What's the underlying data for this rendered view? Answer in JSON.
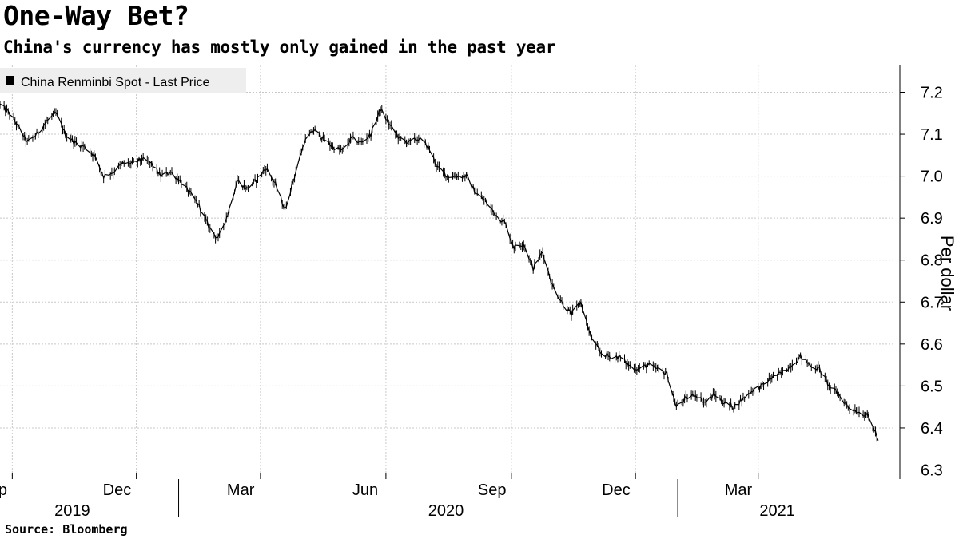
{
  "title": "One-Way Bet?",
  "subtitle": "China's currency has mostly only gained in the past year",
  "source": "Source: Bloomberg",
  "chart_data": {
    "type": "line",
    "style": "high-low-close",
    "title": "One-Way Bet?",
    "subtitle": "China's currency has mostly only gained in the past year",
    "legend": {
      "position": "top-left",
      "entries": [
        "China Renminbi Spot - Last Price"
      ]
    },
    "ylabel": "Per dollar",
    "y_axis_side": "right",
    "ylim": [
      6.3,
      7.25
    ],
    "yticks": [
      "6.3",
      "6.4",
      "6.5",
      "6.6",
      "6.7",
      "6.8",
      "6.9",
      "7.0",
      "7.1",
      "7.2"
    ],
    "grid": true,
    "xlim": [
      "2019-08-23",
      "2021-05-31"
    ],
    "month_ticks": [
      {
        "date": "2019-09-01",
        "label": "Sep"
      },
      {
        "date": "2019-12-01",
        "label": "Dec"
      },
      {
        "date": "2020-03-01",
        "label": "Mar"
      },
      {
        "date": "2020-06-01",
        "label": "Jun"
      },
      {
        "date": "2020-09-01",
        "label": "Sep"
      },
      {
        "date": "2020-12-01",
        "label": "Dec"
      },
      {
        "date": "2021-03-01",
        "label": "Mar"
      }
    ],
    "year_labels": [
      {
        "date": "2019-10-15",
        "label": "2019"
      },
      {
        "date": "2020-07-15",
        "label": "2020"
      },
      {
        "date": "2021-03-15",
        "label": "2021"
      }
    ],
    "year_separators": [
      "2020-01-01",
      "2021-01-01"
    ],
    "series": [
      {
        "name": "China Renminbi Spot - Last Price",
        "color": "#000000",
        "points": [
          [
            "2019-08-23",
            7.17
          ],
          [
            "2019-08-30",
            7.15
          ],
          [
            "2019-09-05",
            7.12
          ],
          [
            "2019-09-12",
            7.08
          ],
          [
            "2019-09-19",
            7.1
          ],
          [
            "2019-09-26",
            7.13
          ],
          [
            "2019-10-03",
            7.15
          ],
          [
            "2019-10-10",
            7.1
          ],
          [
            "2019-10-17",
            7.08
          ],
          [
            "2019-10-24",
            7.07
          ],
          [
            "2019-10-31",
            7.05
          ],
          [
            "2019-11-07",
            7.0
          ],
          [
            "2019-11-14",
            7.01
          ],
          [
            "2019-11-21",
            7.03
          ],
          [
            "2019-11-28",
            7.03
          ],
          [
            "2019-12-05",
            7.04
          ],
          [
            "2019-12-12",
            7.03
          ],
          [
            "2019-12-19",
            7.0
          ],
          [
            "2019-12-26",
            7.01
          ],
          [
            "2020-01-02",
            6.99
          ],
          [
            "2020-01-09",
            6.96
          ],
          [
            "2020-01-16",
            6.93
          ],
          [
            "2020-01-23",
            6.88
          ],
          [
            "2020-01-30",
            6.85
          ],
          [
            "2020-02-06",
            6.91
          ],
          [
            "2020-02-13",
            6.99
          ],
          [
            "2020-02-20",
            6.97
          ],
          [
            "2020-02-27",
            6.99
          ],
          [
            "2020-03-05",
            7.02
          ],
          [
            "2020-03-12",
            6.98
          ],
          [
            "2020-03-19",
            6.92
          ],
          [
            "2020-03-26",
            7.0
          ],
          [
            "2020-04-02",
            7.08
          ],
          [
            "2020-04-09",
            7.11
          ],
          [
            "2020-04-16",
            7.09
          ],
          [
            "2020-04-23",
            7.07
          ],
          [
            "2020-04-30",
            7.06
          ],
          [
            "2020-05-07",
            7.09
          ],
          [
            "2020-05-14",
            7.08
          ],
          [
            "2020-05-21",
            7.1
          ],
          [
            "2020-05-28",
            7.16
          ],
          [
            "2020-06-04",
            7.12
          ],
          [
            "2020-06-11",
            7.09
          ],
          [
            "2020-06-18",
            7.08
          ],
          [
            "2020-06-25",
            7.09
          ],
          [
            "2020-07-02",
            7.07
          ],
          [
            "2020-07-09",
            7.02
          ],
          [
            "2020-07-16",
            7.0
          ],
          [
            "2020-07-23",
            7.0
          ],
          [
            "2020-07-30",
            7.0
          ],
          [
            "2020-08-06",
            6.96
          ],
          [
            "2020-08-13",
            6.94
          ],
          [
            "2020-08-20",
            6.91
          ],
          [
            "2020-08-27",
            6.89
          ],
          [
            "2020-09-03",
            6.83
          ],
          [
            "2020-09-10",
            6.84
          ],
          [
            "2020-09-17",
            6.78
          ],
          [
            "2020-09-24",
            6.82
          ],
          [
            "2020-10-01",
            6.74
          ],
          [
            "2020-10-08",
            6.7
          ],
          [
            "2020-10-15",
            6.67
          ],
          [
            "2020-10-22",
            6.7
          ],
          [
            "2020-10-29",
            6.62
          ],
          [
            "2020-11-05",
            6.58
          ],
          [
            "2020-11-12",
            6.57
          ],
          [
            "2020-11-19",
            6.57
          ],
          [
            "2020-11-26",
            6.55
          ],
          [
            "2020-12-03",
            6.54
          ],
          [
            "2020-12-10",
            6.55
          ],
          [
            "2020-12-17",
            6.54
          ],
          [
            "2020-12-24",
            6.53
          ],
          [
            "2020-12-31",
            6.45
          ],
          [
            "2021-01-07",
            6.47
          ],
          [
            "2021-01-14",
            6.48
          ],
          [
            "2021-01-21",
            6.46
          ],
          [
            "2021-01-28",
            6.48
          ],
          [
            "2021-02-04",
            6.46
          ],
          [
            "2021-02-11",
            6.45
          ],
          [
            "2021-02-18",
            6.47
          ],
          [
            "2021-02-25",
            6.49
          ],
          [
            "2021-03-04",
            6.5
          ],
          [
            "2021-03-11",
            6.52
          ],
          [
            "2021-03-18",
            6.53
          ],
          [
            "2021-03-25",
            6.55
          ],
          [
            "2021-04-01",
            6.57
          ],
          [
            "2021-04-08",
            6.55
          ],
          [
            "2021-04-15",
            6.54
          ],
          [
            "2021-04-22",
            6.5
          ],
          [
            "2021-04-29",
            6.48
          ],
          [
            "2021-05-06",
            6.45
          ],
          [
            "2021-05-13",
            6.44
          ],
          [
            "2021-05-20",
            6.43
          ],
          [
            "2021-05-26",
            6.39
          ],
          [
            "2021-05-28",
            6.37
          ]
        ]
      }
    ]
  }
}
